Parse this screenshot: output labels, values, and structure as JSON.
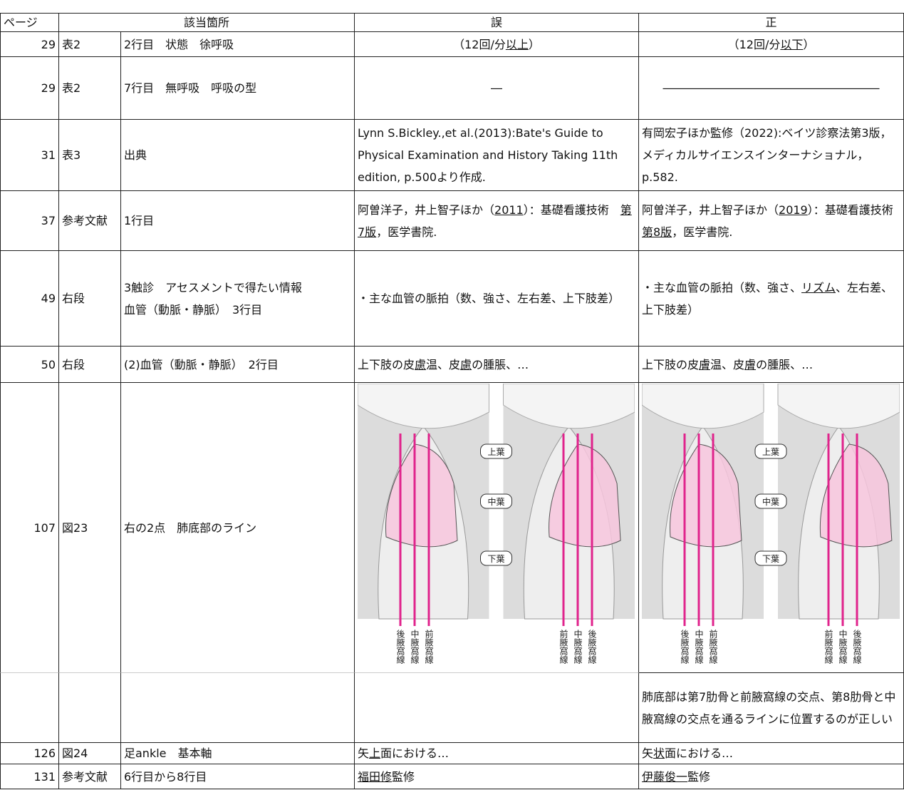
{
  "header": [
    "ページ",
    "該当箇所",
    "誤",
    "正"
  ],
  "rows": [
    [
      29,
      "表2",
      "2行目　状態　徐呼吸",
      [
        "（12回/分",
        {
          "text": "以上",
          "underline": true
        },
        "）"
      ],
      [
        "（12回/分",
        {
          "text": "以下",
          "underline": true
        },
        "）"
      ]
    ],
    [
      29,
      "表2",
      "7行目　無呼吸　呼吸の型",
      "―",
      "―――――――――――――――――――"
    ],
    [
      31,
      "表3",
      "出典",
      "Lynn S.Bickley.,et al.(2013):Bate's Guide to Physical Examination and History Taking 11th edition, p.500より作成.",
      "有岡宏子ほか監修（2022):ベイツ診察法第3版，メディカルサイエンスインターナショナル，p.582."
    ],
    [
      37,
      "参考文献",
      "1行目",
      [
        "阿曽洋子，井上智子ほか（",
        {
          "text": "2011",
          "underline": true
        },
        "）：基礎看護技術　",
        {
          "text": "第7版",
          "underline": true
        },
        "，医学書院."
      ],
      [
        "阿曽洋子，井上智子ほか（",
        {
          "text": "2019",
          "underline": true
        },
        "）：基礎看護技術　",
        {
          "text": "第8版",
          "underline": true
        },
        "，医学書院."
      ]
    ],
    [
      49,
      "右段",
      "3触診　アセスメントで得たい情報\n血管（動脈・静脈）　3行目",
      "・主な血管の脈拍（数、強さ、左右差、上下肢差）",
      [
        "・主な血管の脈拍（数、強さ、",
        {
          "text": "リズム",
          "underline": true
        },
        "、左右差、上下肢差）"
      ]
    ],
    [
      50,
      "右段",
      "(2)血管（動脈・静脈）　2行目",
      [
        "上下肢の皮",
        {
          "text": "慮",
          "underline": true
        },
        "温、皮",
        {
          "text": "慮",
          "underline": true
        },
        "の腫脹、…"
      ],
      [
        "上下肢の皮",
        {
          "text": "膚",
          "underline": true
        },
        "温、皮",
        {
          "text": "膚",
          "underline": true
        },
        "の腫脹、…"
      ]
    ],
    [
      107,
      "図23",
      "右の2点　肺底部のライン",
      {
        "lobes": [
          "上葉",
          "中葉",
          "下葉"
        ],
        "left_lines": [
          "後腋窩線",
          "中腋窩線",
          "前腋窩線"
        ],
        "right_lines": [
          "前腋窩線",
          "中腋窩線",
          "後腋窩線"
        ]
      },
      {
        "lobes": [
          "上葉",
          "中葉",
          "下葉"
        ],
        "left_lines": [
          "後腋窩線",
          "中腋窩線",
          "前腋窩線"
        ],
        "right_lines": [
          "前腋窩線",
          "中腋窩線",
          "後腋窩線"
        ]
      }
    ],
    [
      null,
      null,
      null,
      null,
      "肺底部は第7肋骨と前腋窩線の交点、第8肋骨と中腋窩線の交点を通るラインに位置するのが正しい"
    ],
    [
      126,
      "図24",
      "足ankle　基本軸",
      [
        "矢",
        {
          "text": "上",
          "underline": true
        },
        "面における…"
      ],
      [
        "矢",
        {
          "text": "状",
          "underline": true
        },
        "面における…"
      ]
    ],
    [
      131,
      "参考文献",
      "6行目から8行目",
      [
        {
          "text": "福田修",
          "underline": true
        },
        "監修"
      ],
      [
        {
          "text": "伊藤俊一",
          "underline": true
        },
        "監修"
      ]
    ]
  ]
}
